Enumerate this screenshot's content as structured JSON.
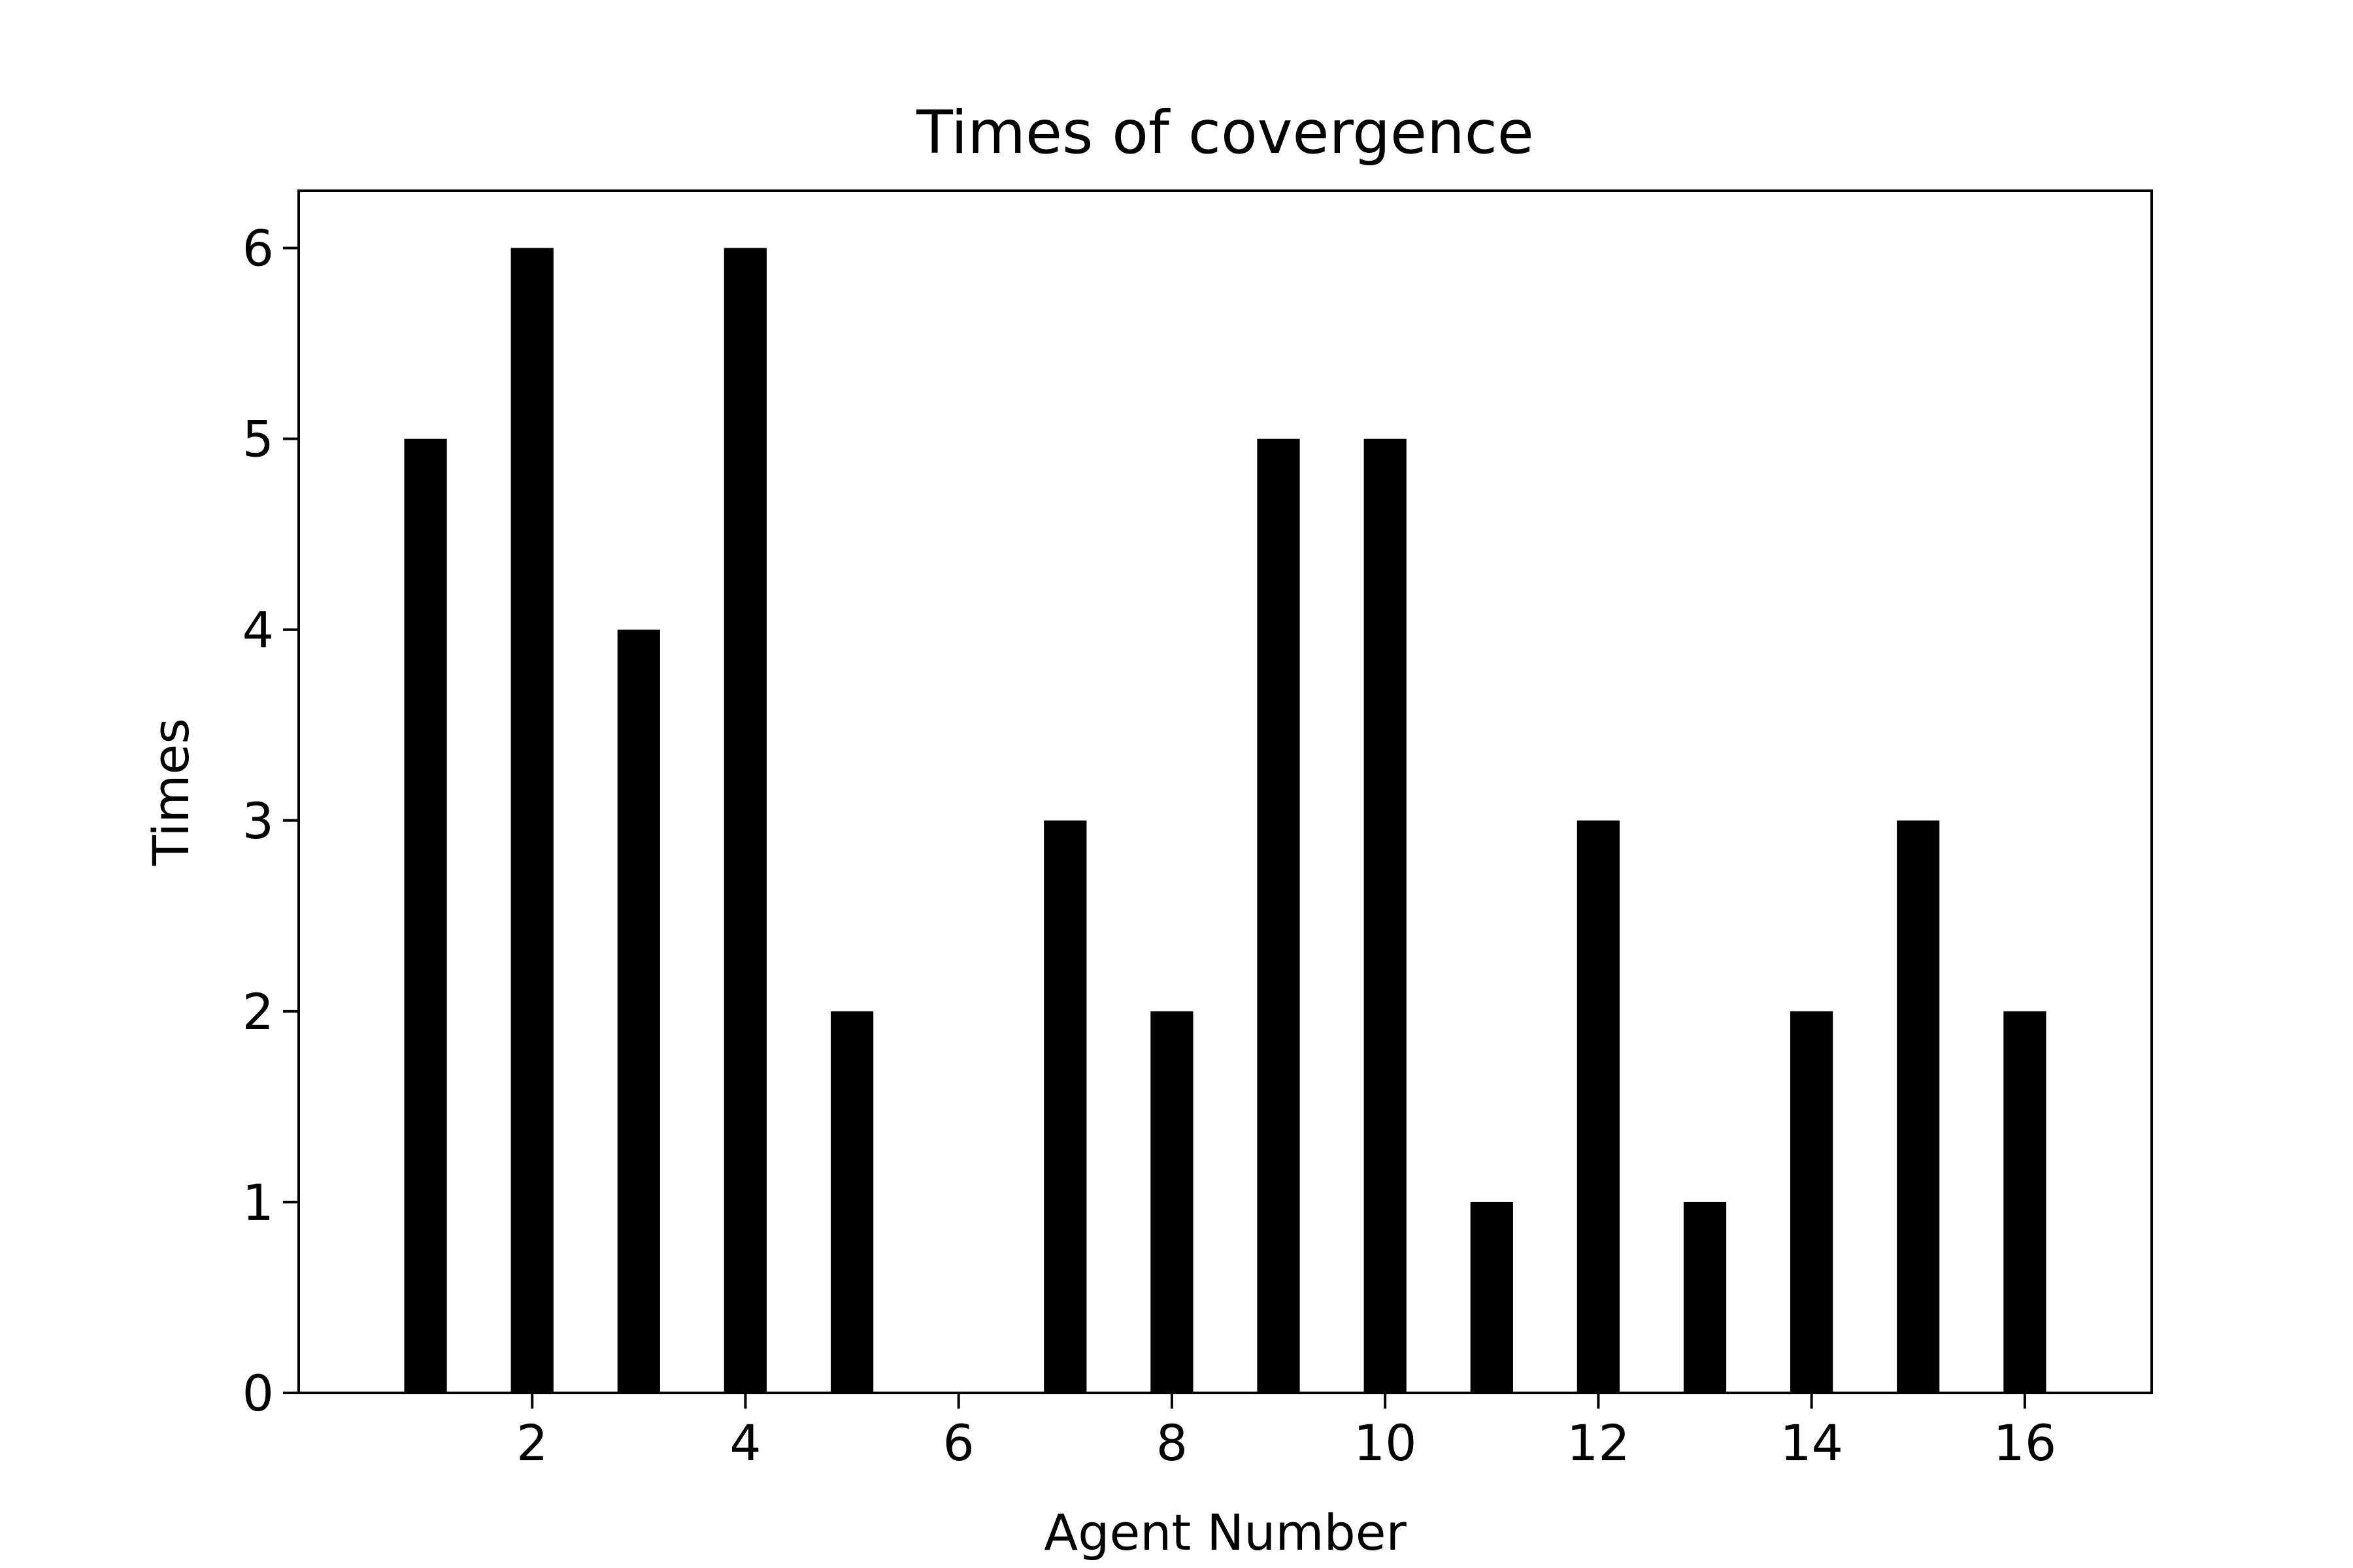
{
  "chart_data": {
    "type": "bar",
    "title": "Times of covergence",
    "xlabel": "Agent Number",
    "ylabel": "Times",
    "categories": [
      1,
      2,
      3,
      4,
      5,
      6,
      7,
      8,
      9,
      10,
      11,
      12,
      13,
      14,
      15,
      16
    ],
    "values": [
      5,
      6,
      4,
      6,
      2,
      0,
      3,
      2,
      5,
      5,
      1,
      3,
      1,
      2,
      3,
      2
    ],
    "bar_width": 0.4,
    "xlim": [
      -0.19,
      17.19
    ],
    "ylim": [
      0,
      6.3
    ],
    "xticks": [
      2,
      4,
      6,
      8,
      10,
      12,
      14,
      16
    ],
    "yticks": [
      0,
      1,
      2,
      3,
      4,
      5,
      6
    ],
    "bar_color": "#000000",
    "grid": false,
    "legend": "none"
  }
}
